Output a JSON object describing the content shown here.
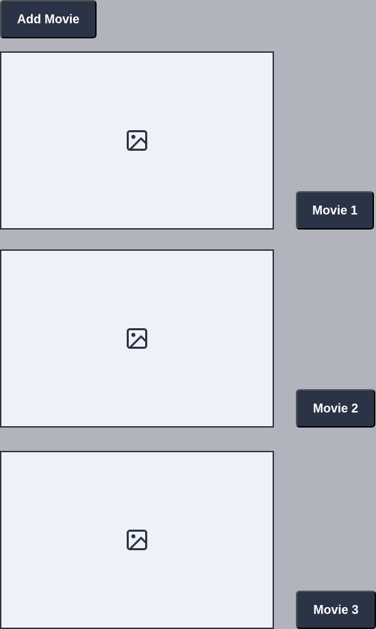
{
  "colors": {
    "background": "#b1b4bc",
    "button": "#2b3446",
    "card": "#eef1f7",
    "border": "#2b3446"
  },
  "toolbar": {
    "add_label": "Add Movie"
  },
  "movies": [
    {
      "label": "Movie 1",
      "icon": "image-placeholder-icon"
    },
    {
      "label": "Movie 2",
      "icon": "image-placeholder-icon"
    },
    {
      "label": "Movie 3",
      "icon": "image-placeholder-icon"
    }
  ]
}
